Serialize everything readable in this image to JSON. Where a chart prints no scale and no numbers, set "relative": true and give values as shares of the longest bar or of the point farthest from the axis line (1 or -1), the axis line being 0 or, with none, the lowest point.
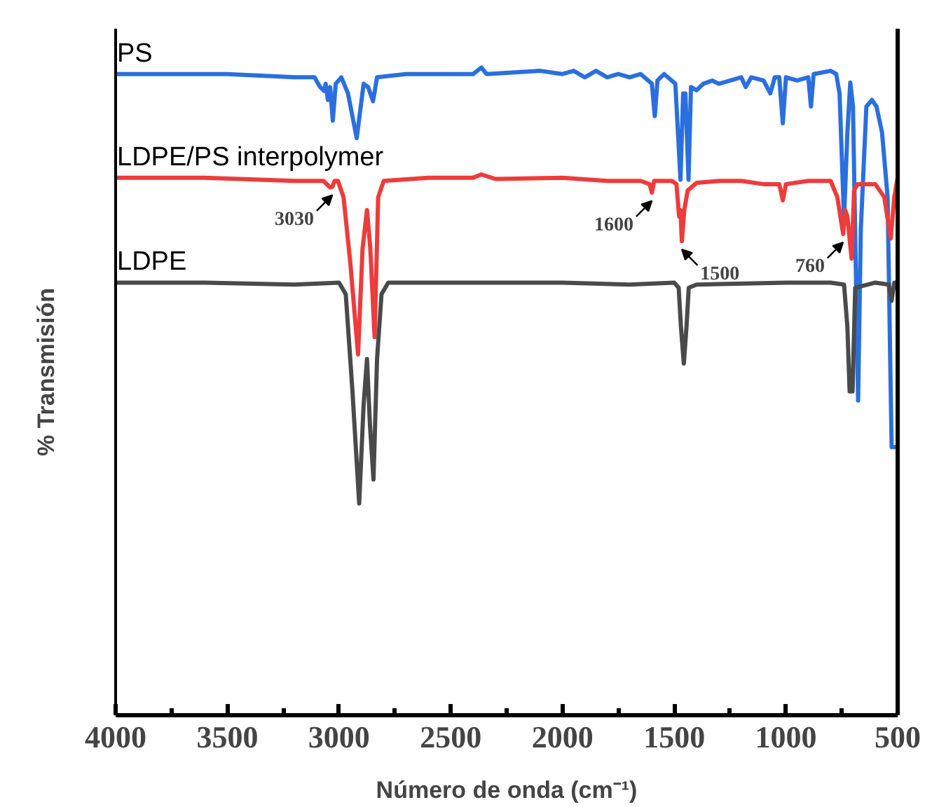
{
  "chart_data": {
    "type": "line",
    "relative": true,
    "xlabel": "Número de onda (cm⁻¹)",
    "ylabel": "% Transmisión",
    "xlim": [
      4000,
      500
    ],
    "xticks": [
      4000,
      3500,
      3000,
      2500,
      2000,
      1500,
      1000,
      500
    ],
    "grid": false,
    "marker": "none",
    "line_style": "solid",
    "series": [
      {
        "name": "PS",
        "color": "#2b6fde",
        "x": [
          4000,
          3500,
          3200,
          3110,
          3085,
          3067,
          3060,
          3050,
          3040,
          3028,
          3015,
          2990,
          2960,
          2921,
          2890,
          2870,
          2848,
          2830,
          2700,
          2400,
          2363,
          2340,
          2100,
          2000,
          1950,
          1900,
          1850,
          1800,
          1750,
          1700,
          1650,
          1600,
          1587,
          1575,
          1545,
          1495,
          1472,
          1460,
          1450,
          1436,
          1425,
          1400,
          1370,
          1330,
          1300,
          1200,
          1180,
          1155,
          1100,
          1070,
          1050,
          1030,
          1014,
          1000,
          950,
          900,
          888,
          876,
          800,
          775,
          760,
          740,
          725,
          712,
          700,
          677,
          665,
          640,
          615,
          595,
          570,
          545,
          527,
          500
        ],
        "values": [
          0.99,
          0.99,
          0.985,
          0.985,
          0.97,
          0.964,
          0.975,
          0.95,
          0.97,
          0.918,
          0.975,
          0.985,
          0.96,
          0.891,
          0.975,
          0.97,
          0.948,
          0.985,
          0.99,
          0.99,
          1.0,
          0.99,
          0.995,
          0.99,
          0.995,
          0.985,
          0.995,
          0.985,
          0.99,
          0.985,
          0.99,
          0.975,
          0.925,
          0.98,
          0.99,
          0.975,
          0.827,
          0.96,
          0.96,
          0.827,
          0.97,
          0.965,
          0.975,
          0.98,
          0.975,
          0.985,
          0.97,
          0.985,
          0.98,
          0.96,
          0.985,
          0.985,
          0.914,
          0.985,
          0.98,
          0.985,
          0.94,
          0.99,
          0.995,
          0.99,
          0.96,
          0.766,
          0.9,
          0.977,
          0.94,
          0.486,
          0.75,
          0.94,
          0.95,
          0.94,
          0.9,
          0.8,
          0.414,
          0.414
        ]
      },
      {
        "name": "LDPE/PS interpolymer",
        "color": "#ee3b3b",
        "x": [
          4000,
          3600,
          3200,
          3070,
          3040,
          3030,
          3020,
          3005,
          2980,
          2950,
          2915,
          2895,
          2875,
          2860,
          2841,
          2825,
          2800,
          2600,
          2400,
          2363,
          2300,
          2000,
          1800,
          1650,
          1610,
          1600,
          1590,
          1510,
          1490,
          1478,
          1472,
          1466,
          1455,
          1440,
          1400,
          1300,
          1200,
          1100,
          1030,
          1014,
          1000,
          900,
          800,
          770,
          744,
          735,
          725,
          706,
          695,
          680,
          600,
          560,
          531,
          515,
          500
        ],
        "values": [
          0.83,
          0.83,
          0.825,
          0.825,
          0.815,
          0.816,
          0.825,
          0.825,
          0.8,
          0.7,
          0.557,
          0.72,
          0.78,
          0.72,
          0.584,
          0.8,
          0.825,
          0.83,
          0.83,
          0.835,
          0.828,
          0.83,
          0.825,
          0.825,
          0.82,
          0.807,
          0.825,
          0.825,
          0.82,
          0.77,
          0.78,
          0.732,
          0.78,
          0.81,
          0.822,
          0.825,
          0.825,
          0.82,
          0.82,
          0.795,
          0.82,
          0.825,
          0.825,
          0.8,
          0.743,
          0.78,
          0.77,
          0.705,
          0.81,
          0.82,
          0.82,
          0.8,
          0.736,
          0.8,
          0.83
        ]
      },
      {
        "name": "LDPE",
        "color": "#4a4a4a",
        "x": [
          4000,
          3600,
          3200,
          3000,
          2970,
          2940,
          2910,
          2890,
          2875,
          2862,
          2846,
          2830,
          2810,
          2780,
          2400,
          2000,
          1700,
          1500,
          1480,
          1470,
          1457,
          1445,
          1435,
          1400,
          1000,
          800,
          740,
          725,
          715,
          702,
          690,
          600,
          540,
          527,
          515,
          500
        ],
        "values": [
          0.668,
          0.668,
          0.665,
          0.668,
          0.65,
          0.5,
          0.327,
          0.48,
          0.55,
          0.45,
          0.364,
          0.55,
          0.65,
          0.668,
          0.668,
          0.668,
          0.665,
          0.668,
          0.66,
          0.6,
          0.543,
          0.6,
          0.66,
          0.665,
          0.668,
          0.668,
          0.665,
          0.6,
          0.5,
          0.5,
          0.66,
          0.668,
          0.665,
          0.64,
          0.668,
          0.668
        ]
      }
    ],
    "annotations": [
      {
        "text": "3030",
        "x": 3030,
        "y": 0.816
      },
      {
        "text": "1600",
        "x": 1600,
        "y": 0.807
      },
      {
        "text": "1500",
        "x": 1466,
        "y": 0.732
      },
      {
        "text": "760",
        "x": 744,
        "y": 0.743
      }
    ]
  }
}
